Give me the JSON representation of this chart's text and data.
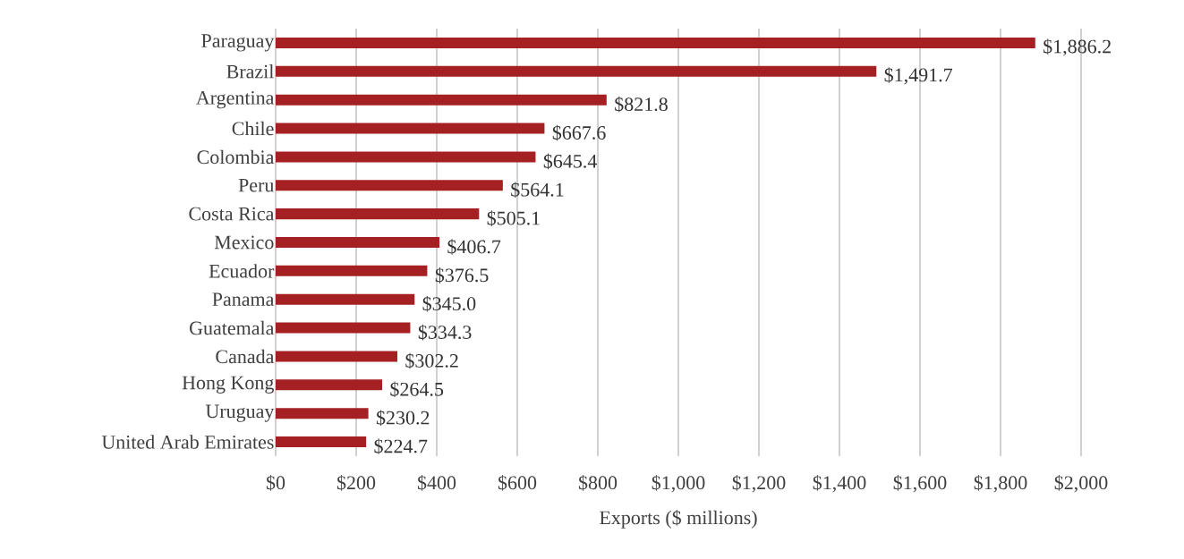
{
  "chart_data": {
    "type": "bar",
    "orientation": "horizontal",
    "xlabel": "Exports ($ millions)",
    "categories": [
      "Paraguay",
      "Brazil",
      "Argentina",
      "Chile",
      "Colombia",
      "Peru",
      "Costa Rica",
      "Mexico",
      "Ecuador",
      "Panama",
      "Guatemala",
      "Canada",
      "Hong Kong",
      "Uruguay",
      "United Arab Emirates"
    ],
    "values": [
      1886.2,
      1491.7,
      821.8,
      667.6,
      645.4,
      564.1,
      505.1,
      406.7,
      376.5,
      345.0,
      334.3,
      302.2,
      264.5,
      230.2,
      224.7
    ],
    "value_labels": [
      "$1,886.2",
      "$1,491.7",
      "$821.8",
      "$667.6",
      "$645.4",
      "$564.1",
      "$505.1",
      "$406.7",
      "$376.5",
      "$345.0",
      "$334.3",
      "$302.2",
      "$264.5",
      "$230.2",
      "$224.7"
    ],
    "color": "#a52022",
    "xlim": [
      0,
      2000
    ],
    "xticks": [
      {
        "value": 0,
        "label": "$0"
      },
      {
        "value": 200,
        "label": "$200"
      },
      {
        "value": 400,
        "label": "$400"
      },
      {
        "value": 600,
        "label": "$600"
      },
      {
        "value": 800,
        "label": "$800"
      },
      {
        "value": 1000,
        "label": "$1,000"
      },
      {
        "value": 1200,
        "label": "$1,200"
      },
      {
        "value": 1400,
        "label": "$1,400"
      },
      {
        "value": 1600,
        "label": "$1,600"
      },
      {
        "value": 1800,
        "label": "$1,800"
      },
      {
        "value": 2000,
        "label": "$2,000"
      }
    ],
    "grid": "x"
  }
}
